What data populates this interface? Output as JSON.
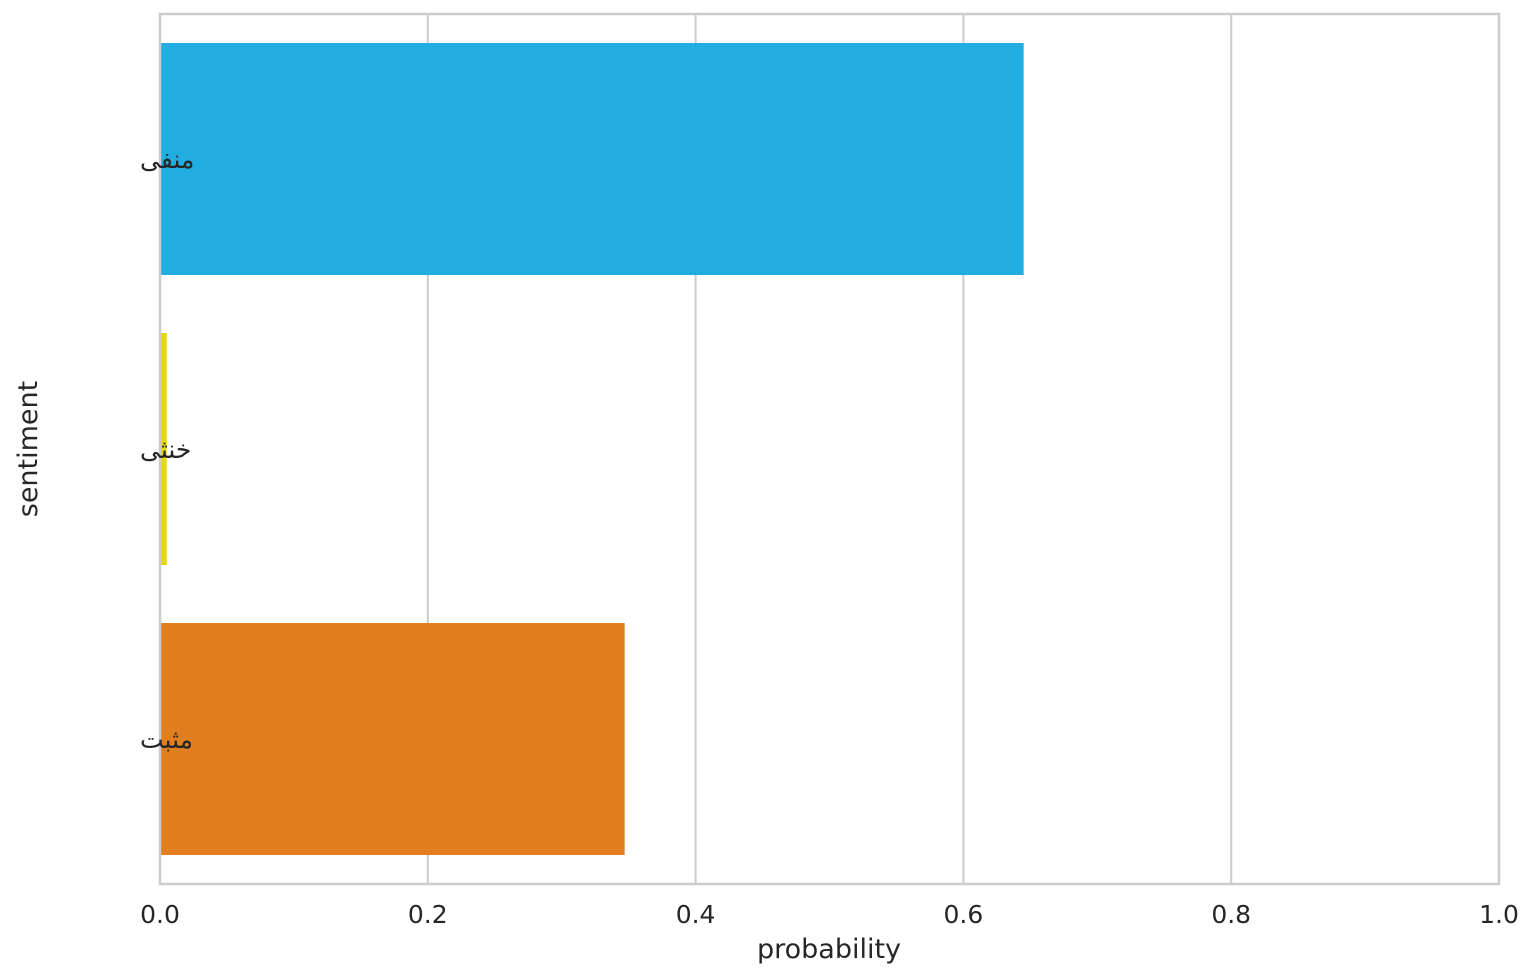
{
  "chart_data": {
    "type": "bar",
    "orientation": "horizontal",
    "categories": [
      "منفی",
      "خنثی",
      "مثبت"
    ],
    "values": [
      0.645,
      0.005,
      0.347
    ],
    "colors": [
      "#22ade0",
      "#e6d80f",
      "#e07e20"
    ],
    "xlabel": "probability",
    "ylabel": "sentiment",
    "xlim": [
      0,
      1.0
    ],
    "xticks": [
      "0.0",
      "0.2",
      "0.4",
      "0.6",
      "0.8",
      "1.0"
    ],
    "grid": "vertical",
    "legend": "none"
  }
}
